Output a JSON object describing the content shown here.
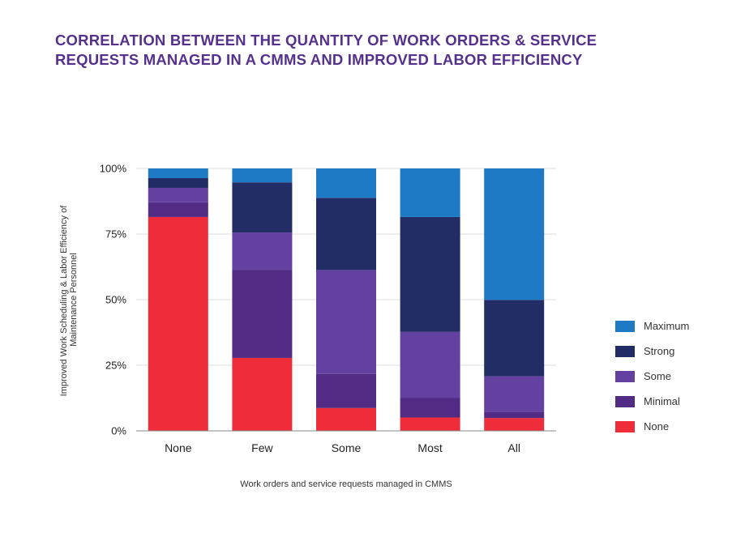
{
  "chart_data": {
    "type": "bar",
    "stacked": true,
    "title_lines": [
      "CORRELATION BETWEEN THE QUANTITY OF WORK ORDERS & SERVICE",
      "REQUESTS MANAGED IN A CMMS AND IMPROVED LABOR EFFICIENCY"
    ],
    "xlabel": "Work orders and service requests managed in CMMS",
    "ylabel_lines": [
      "Improved Work Scheduling & Labor Efficiency of",
      "Maintenance Personnel"
    ],
    "categories": [
      "None",
      "Few",
      "Some",
      "Most",
      "All"
    ],
    "ylim": [
      0,
      100
    ],
    "yticks": [
      0,
      25,
      50,
      75,
      100
    ],
    "ytick_labels": [
      "0%",
      "25%",
      "50%",
      "75%",
      "100%"
    ],
    "series": [
      {
        "name": "None",
        "color": "#ee2c3a",
        "values": [
          81.5,
          27.8,
          8.7,
          5.1,
          4.9
        ]
      },
      {
        "name": "Minimal",
        "color": "#512b84",
        "values": [
          5.6,
          33.6,
          13.0,
          7.4,
          2.4
        ]
      },
      {
        "name": "Some",
        "color": "#6441a1",
        "values": [
          5.5,
          14.2,
          39.6,
          25.2,
          13.5
        ]
      },
      {
        "name": "Strong",
        "color": "#222d65",
        "values": [
          3.7,
          19.1,
          27.5,
          43.8,
          29.1
        ]
      },
      {
        "name": "Maximum",
        "color": "#1e7ac4",
        "values": [
          3.7,
          5.3,
          11.2,
          18.5,
          50.1
        ]
      }
    ],
    "legend_order": [
      "Maximum",
      "Strong",
      "Some",
      "Minimal",
      "None"
    ],
    "legend_position": "right"
  }
}
